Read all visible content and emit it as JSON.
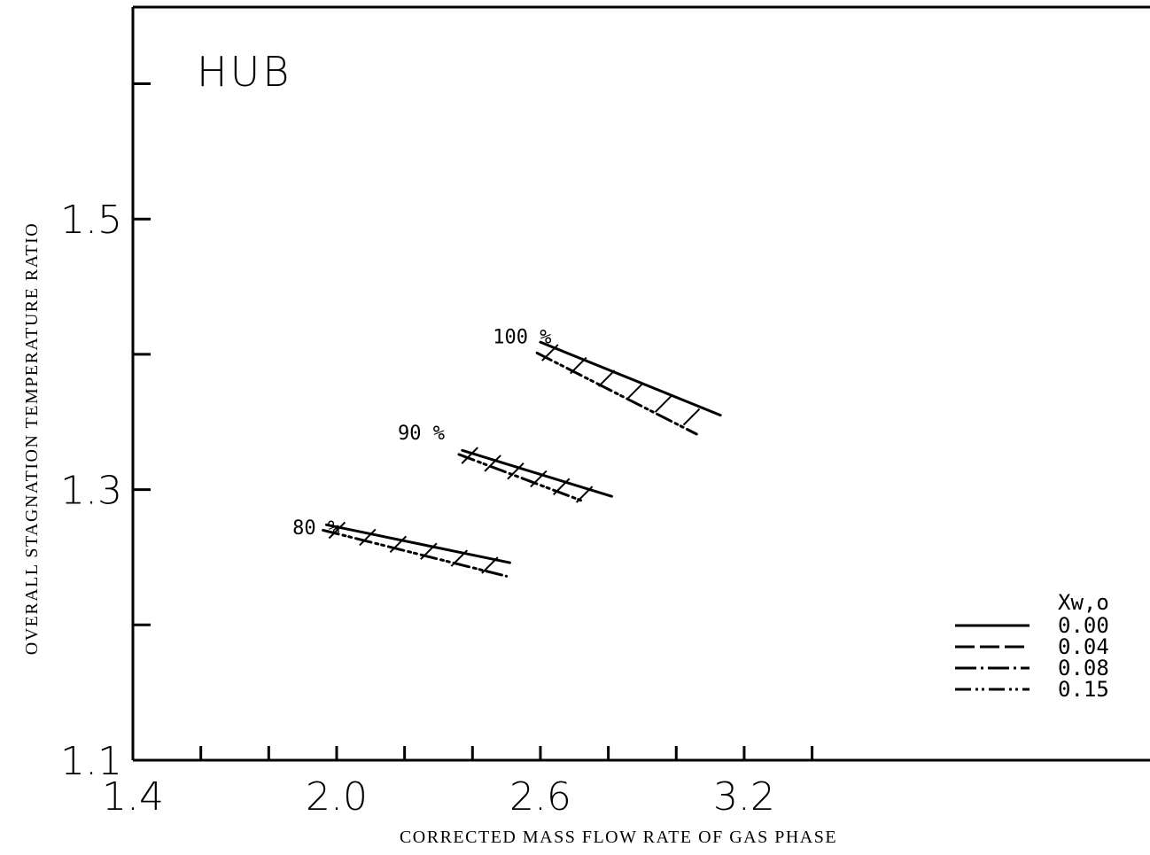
{
  "chart_data": {
    "type": "line",
    "title": "HUB",
    "xlabel": "CORRECTED MASS FLOW RATE OF GAS PHASE",
    "ylabel": "OVERALL STAGNATION TEMPERATURE RATIO",
    "xlim": [
      1.4,
      3.4
    ],
    "ylim": [
      1.1,
      1.7
    ],
    "x_ticks": [
      1.4,
      2.0,
      2.6,
      3.2
    ],
    "x_tick_labels": [
      "1.4",
      "2.0",
      "2.6",
      "3.2"
    ],
    "y_ticks": [
      1.1,
      1.3,
      1.5
    ],
    "y_tick_labels": [
      "1.1",
      "1.3",
      "1.5"
    ],
    "legend": {
      "title": "Xw,o",
      "position": "bottom-right",
      "entries": [
        "0.00",
        "0.04",
        "0.08",
        "0.15"
      ]
    },
    "annotations": [
      {
        "text": "100 %",
        "x": 2.46,
        "y": 1.408
      },
      {
        "text": "90 %",
        "x": 2.18,
        "y": 1.337
      },
      {
        "text": "80 %",
        "x": 1.87,
        "y": 1.267
      }
    ],
    "series": [
      {
        "name": "0.00",
        "group": "100 %",
        "x": [
          2.6,
          3.13
        ],
        "y": [
          1.409,
          1.355
        ]
      },
      {
        "name": "0.15",
        "group": "100 %",
        "x": [
          2.59,
          3.06
        ],
        "y": [
          1.401,
          1.341
        ]
      },
      {
        "name": "0.00",
        "group": "90 %",
        "x": [
          2.37,
          2.81
        ],
        "y": [
          1.329,
          1.295
        ]
      },
      {
        "name": "0.15",
        "group": "90 %",
        "x": [
          2.36,
          2.73
        ],
        "y": [
          1.326,
          1.291
        ]
      },
      {
        "name": "0.00",
        "group": "80 %",
        "x": [
          1.97,
          2.51
        ],
        "y": [
          1.274,
          1.246
        ]
      },
      {
        "name": "0.15",
        "group": "80 %",
        "x": [
          1.96,
          2.5
        ],
        "y": [
          1.27,
          1.236
        ]
      }
    ]
  }
}
